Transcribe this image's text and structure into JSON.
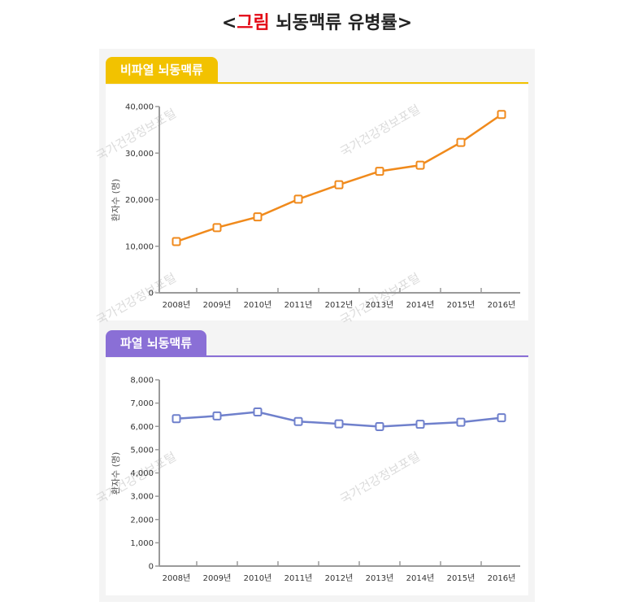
{
  "title": {
    "open": "<",
    "accent": "그림",
    "rest": " 뇌동맥류 유병률",
    "close": ">"
  },
  "watermark": "국가건강정보포털",
  "colors": {
    "accent": "#e30613",
    "tab1": "#f2c200",
    "tab2": "#8a6fd6",
    "line1": "#f08a1c",
    "line2": "#6f80cc"
  },
  "chart_data": [
    {
      "type": "line",
      "section_label": "비파열 뇌동맥류",
      "categories": [
        "2008년",
        "2009년",
        "2010년",
        "2011년",
        "2012년",
        "2013년",
        "2014년",
        "2015년",
        "2016년"
      ],
      "values": [
        11000,
        14000,
        16300,
        20100,
        23200,
        26100,
        27400,
        32300,
        38300
      ],
      "ylabel": "환자수 (명)",
      "ylim": [
        0,
        40000
      ],
      "yticks": [
        0,
        10000,
        20000,
        30000,
        40000
      ],
      "ytick_labels": [
        "0",
        "10,000",
        "20,000",
        "30,000",
        "40,000"
      ],
      "color": "#f08a1c",
      "grid": false
    },
    {
      "type": "line",
      "section_label": "파열 뇌동맥류",
      "categories": [
        "2008년",
        "2009년",
        "2010년",
        "2011년",
        "2012년",
        "2013년",
        "2014년",
        "2015년",
        "2016년"
      ],
      "values": [
        6330,
        6450,
        6620,
        6210,
        6110,
        5990,
        6090,
        6180,
        6370
      ],
      "ylabel": "환자수 (명)",
      "ylim": [
        0,
        8000
      ],
      "yticks": [
        0,
        1000,
        2000,
        3000,
        4000,
        5000,
        6000,
        7000,
        8000
      ],
      "ytick_labels": [
        "0",
        "1,000",
        "2,000",
        "3,000",
        "4,000",
        "5,000",
        "6,000",
        "7,000",
        "8,000"
      ],
      "color": "#6f80cc",
      "grid": false
    }
  ]
}
